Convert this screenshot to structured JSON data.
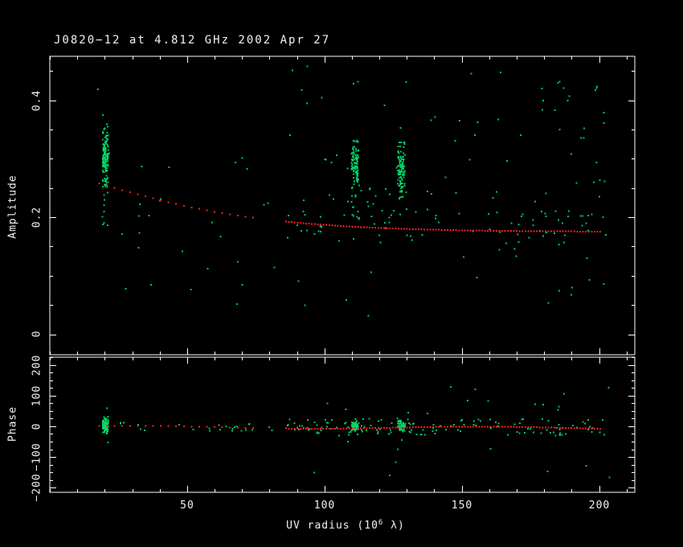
{
  "title": "J0820−12 at 4.812 GHz 2002 Apr 27",
  "xlabel": {
    "pre": "UV radius  (10",
    "sup": "6",
    "post": " λ)"
  },
  "xtick_labels": [
    "50",
    "100",
    "150",
    "200"
  ],
  "colors": {
    "background": "#000000",
    "axis": "#ffffff",
    "data_points": "#00d96b",
    "model_points": "#ff1f1f"
  },
  "chart_data": [
    {
      "type": "scatter",
      "panel": "amplitude",
      "ylabel": "Amplitude",
      "xlabel": "UV radius (10^6 lambda)",
      "xlim": [
        0,
        213
      ],
      "ylim": [
        -0.035,
        0.475
      ],
      "xticks": [
        50,
        100,
        150,
        200
      ],
      "xtick_minor_step": 10,
      "yticks": [
        0,
        0.2,
        0.4
      ],
      "ytick_labels": [
        "0",
        "0.2",
        "0.4"
      ],
      "ytick_minor_step": 0.05,
      "series": [
        {
          "name": "visibility-data",
          "color_key": "data_points",
          "clusters": [
            {
              "x": [
                19.2,
                21.3
              ],
              "y": [
                0.237,
                0.365
              ],
              "n": 140,
              "dist": "tri"
            },
            {
              "x": [
                19.2,
                21.3
              ],
              "y": [
                0.185,
                0.245
              ],
              "n": 8,
              "dist": "uniform"
            },
            {
              "x": [
                109.8,
                112.4
              ],
              "y": [
                0.245,
                0.335
              ],
              "n": 95,
              "dist": "tri"
            },
            {
              "x": [
                109.8,
                112.4
              ],
              "y": [
                0.185,
                0.25
              ],
              "n": 10,
              "dist": "uniform"
            },
            {
              "x": [
                126.7,
                129.4
              ],
              "y": [
                0.225,
                0.335
              ],
              "n": 110,
              "dist": "tri"
            },
            {
              "x": [
                86,
                205
              ],
              "y": [
                0.155,
                0.215
              ],
              "n": 55,
              "dist": "uniform"
            },
            {
              "x": [
                92,
                140
              ],
              "y": [
                0.2,
                0.26
              ],
              "n": 25,
              "dist": "uniform"
            },
            {
              "x": [
                24,
                82
              ],
              "y": [
                0.05,
                0.31
              ],
              "n": 26,
              "dist": "uniform"
            },
            {
              "x": [
                85,
                205
              ],
              "y": [
                0.03,
                0.46
              ],
              "n": 60,
              "dist": "uniform"
            },
            {
              "x": [
                178,
                202
              ],
              "y": [
                0.06,
                0.45
              ],
              "n": 22,
              "dist": "uniform"
            },
            {
              "x": [
                95,
                205
              ],
              "y": [
                0.25,
                0.45
              ],
              "n": 18,
              "dist": "uniform"
            },
            {
              "x": [
                16,
                23
              ],
              "y": [
                0.3,
                0.42
              ],
              "n": 3,
              "dist": "uniform"
            }
          ]
        },
        {
          "name": "model",
          "color_key": "model_points",
          "model": {
            "kind": "exp",
            "floor": 0.175,
            "scale": 0.105,
            "width": 55,
            "power": 1.3
          },
          "sample_ranges": [
            [
              18,
              75.5,
              2.8
            ],
            [
              86,
              201,
              1.05
            ]
          ]
        }
      ]
    },
    {
      "type": "scatter",
      "panel": "phase",
      "ylabel": "Phase",
      "xlim": [
        0,
        213
      ],
      "ylim": [
        -215,
        225
      ],
      "xticks": [
        50,
        100,
        150,
        200
      ],
      "xtick_minor_step": 10,
      "yticks": [
        -200,
        -100,
        0,
        100,
        200
      ],
      "ytick_labels": [
        "−200",
        "−100",
        "0",
        "100",
        "200"
      ],
      "ytick_minor_step": 25,
      "series": [
        {
          "name": "visibility-data",
          "color_key": "data_points",
          "clusters": [
            {
              "x": [
                19.2,
                21.3
              ],
              "y": [
                -28,
                32
              ],
              "n": 90,
              "dist": "tri"
            },
            {
              "x": [
                19.2,
                21.3
              ],
              "y": [
                -70,
                80
              ],
              "n": 10,
              "dist": "uniform"
            },
            {
              "x": [
                24,
                82
              ],
              "y": [
                -16,
                16
              ],
              "n": 24,
              "dist": "uniform"
            },
            {
              "x": [
                86,
                136
              ],
              "y": [
                -28,
                26
              ],
              "n": 70,
              "dist": "uniform"
            },
            {
              "x": [
                109.8,
                112.4
              ],
              "y": [
                -18,
                18
              ],
              "n": 55,
              "dist": "tri"
            },
            {
              "x": [
                126.7,
                129.4
              ],
              "y": [
                -22,
                22
              ],
              "n": 60,
              "dist": "tri"
            },
            {
              "x": [
                136,
                205
              ],
              "y": [
                -32,
                27
              ],
              "n": 60,
              "dist": "uniform"
            },
            {
              "x": [
                86,
                205
              ],
              "y": [
                -95,
                95
              ],
              "n": 24,
              "dist": "uniform"
            },
            {
              "x": [
                92,
                205
              ],
              "y": [
                -175,
                -115
              ],
              "n": 6,
              "dist": "uniform"
            },
            {
              "x": [
                100,
                205
              ],
              "y": [
                95,
                150
              ],
              "n": 4,
              "dist": "uniform"
            }
          ]
        },
        {
          "name": "model",
          "color_key": "model_points",
          "model": {
            "kind": "sine",
            "amp": 4,
            "period": 20,
            "offset": -2,
            "slope": -0.02
          },
          "sample_ranges": [
            [
              18,
              75.5,
              2.8
            ],
            [
              86,
              201,
              1.05
            ]
          ]
        }
      ]
    }
  ]
}
